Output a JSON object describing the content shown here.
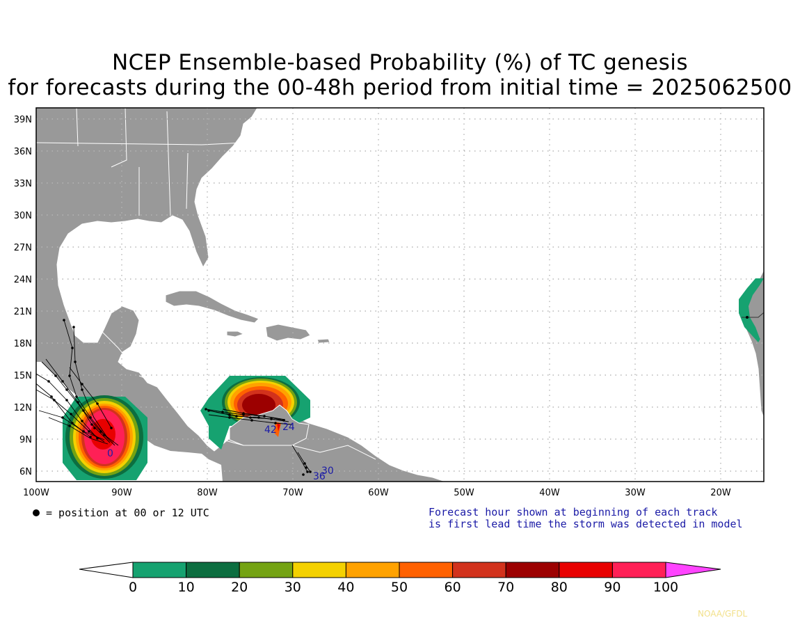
{
  "title": {
    "line1": "NCEP Ensemble-based Probability (%) of TC genesis",
    "line2": "for forecasts during the 00-48h period from initial time = 2025062500"
  },
  "map": {
    "lat_labels": [
      "39N",
      "36N",
      "33N",
      "30N",
      "27N",
      "24N",
      "21N",
      "18N",
      "15N",
      "12N",
      "9N",
      "6N"
    ],
    "lon_labels": [
      "100W",
      "90W",
      "80W",
      "70W",
      "60W",
      "50W",
      "40W",
      "30W",
      "20W"
    ],
    "extent": {
      "lon_min": -100,
      "lon_max": -15,
      "lat_min": 5,
      "lat_max": 40
    },
    "ocean_color": "#ffffff",
    "land_color": "#999999",
    "genesis_areas": [
      {
        "region": "East Pacific",
        "center": [
          -92.1,
          9.5
        ],
        "peak_probability": 100
      },
      {
        "region": "Southern Caribbean",
        "center": [
          -73.0,
          11.5
        ],
        "peak_probability": 80
      },
      {
        "region": "Eastern Atlantic",
        "center": [
          -16.5,
          20.5
        ],
        "peak_probability": 10
      }
    ],
    "track_labels": [
      {
        "text": "42",
        "lon": -73.5,
        "lat": 9.7
      },
      {
        "text": "24",
        "lon": -70.2,
        "lat": 9.9
      },
      {
        "text": "0",
        "lon": -92.5,
        "lat": 8.2
      },
      {
        "text": "30",
        "lon": -68.3,
        "lat": 6.0
      },
      {
        "text": "36",
        "lon": -68.9,
        "lat": 5.5
      }
    ]
  },
  "legend": {
    "marker_text": "= position at 00 or 12 UTC",
    "note_line1": "Forecast hour shown at beginning of each track",
    "note_line2": "is first lead time the storm was detected in model",
    "note_color": "#1a1aa6"
  },
  "colorbar": {
    "labels": [
      "0",
      "10",
      "20",
      "30",
      "40",
      "50",
      "60",
      "70",
      "80",
      "90",
      "100"
    ],
    "colors": [
      "#16a270",
      "#0c6e40",
      "#74a313",
      "#f4d100",
      "#ffa200",
      "#ff6100",
      "#d2321c",
      "#9c0000",
      "#e80000",
      "#ff2056"
    ],
    "below_color": "#ffffff",
    "above_color": "#ff44ff"
  },
  "credit": "NOAA/GFDL"
}
